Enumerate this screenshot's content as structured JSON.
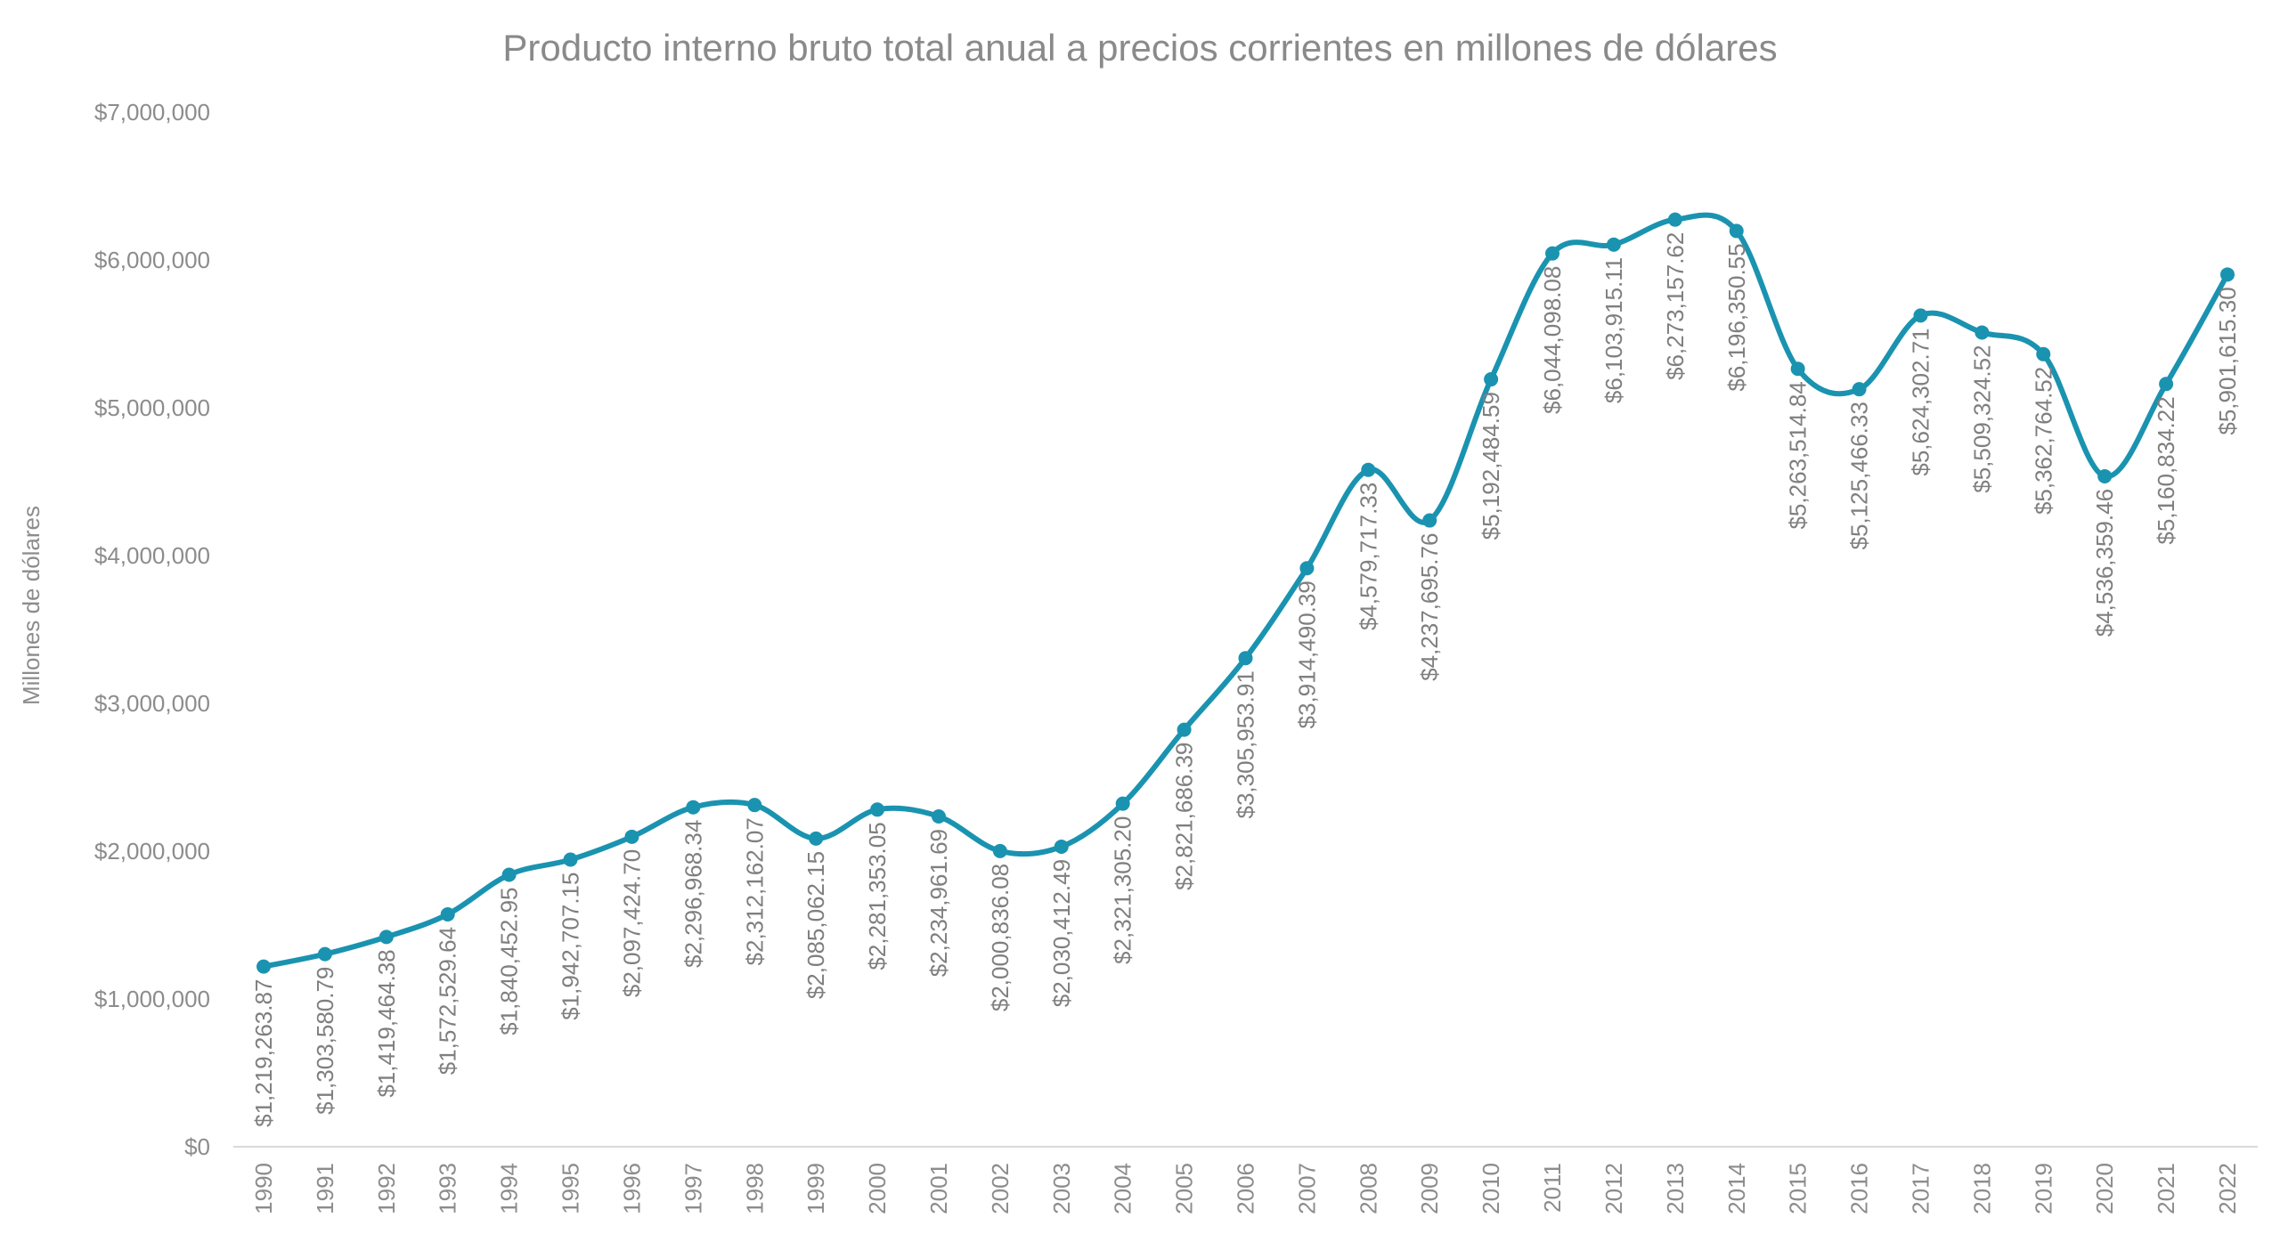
{
  "chart_data": {
    "type": "line",
    "title": "Producto interno bruto total anual a precios corrientes en millones de dólares",
    "xlabel": "",
    "ylabel": "Millones de dólares",
    "ylim": [
      0,
      7000000
    ],
    "yticks": [
      0,
      1000000,
      2000000,
      3000000,
      4000000,
      5000000,
      6000000,
      7000000
    ],
    "ytick_labels": [
      "$0",
      "$1,000,000",
      "$2,000,000",
      "$3,000,000",
      "$4,000,000",
      "$5,000,000",
      "$6,000,000",
      "$7,000,000"
    ],
    "grid": false,
    "smooth": true,
    "color": "#1a93b0",
    "categories": [
      "1990",
      "1991",
      "1992",
      "1993",
      "1994",
      "1995",
      "1996",
      "1997",
      "1998",
      "1999",
      "2000",
      "2001",
      "2002",
      "2003",
      "2004",
      "2005",
      "2006",
      "2007",
      "2008",
      "2009",
      "2010",
      "2011",
      "2012",
      "2013",
      "2014",
      "2015",
      "2016",
      "2017",
      "2018",
      "2019",
      "2020",
      "2021",
      "2022"
    ],
    "values": [
      1219263.87,
      1303580.79,
      1419464.38,
      1572529.64,
      1840452.95,
      1942707.15,
      2097424.7,
      2296968.34,
      2312162.07,
      2085062.15,
      2281353.05,
      2234961.69,
      2000836.08,
      2030412.49,
      2321305.2,
      2821686.39,
      3305953.91,
      3914490.39,
      4579717.33,
      4237695.76,
      5192484.59,
      6044098.08,
      6103915.11,
      6273157.62,
      6196350.55,
      5263514.84,
      5125466.33,
      5624302.71,
      5509324.52,
      5362764.52,
      4536359.46,
      5160834.22,
      5901615.3
    ],
    "data_labels": [
      "$1,219,263.87",
      "$1,303,580.79",
      "$1,419,464.38",
      "$1,572,529.64",
      "$1,840,452.95",
      "$1,942,707.15",
      "$2,097,424.70",
      "$2,296,968.34",
      "$2,312,162.07",
      "$2,085,062.15",
      "$2,281,353.05",
      "$2,234,961.69",
      "$2,000,836.08",
      "$2,030,412.49",
      "$2,321,305.20",
      "$2,821,686.39",
      "$3,305,953.91",
      "$3,914,490.39",
      "$4,579,717.33",
      "$4,237,695.76",
      "$5,192,484.59",
      "$6,044,098.08",
      "$6,103,915.11",
      "$6,273,157.62",
      "$6,196,350.55",
      "$5,263,514.84",
      "$5,125,466.33",
      "$5,624,302.71",
      "$5,509,324.52",
      "$5,362,764.52",
      "$4,536,359.46",
      "$5,160,834.22",
      "$5,901,615.30"
    ]
  }
}
